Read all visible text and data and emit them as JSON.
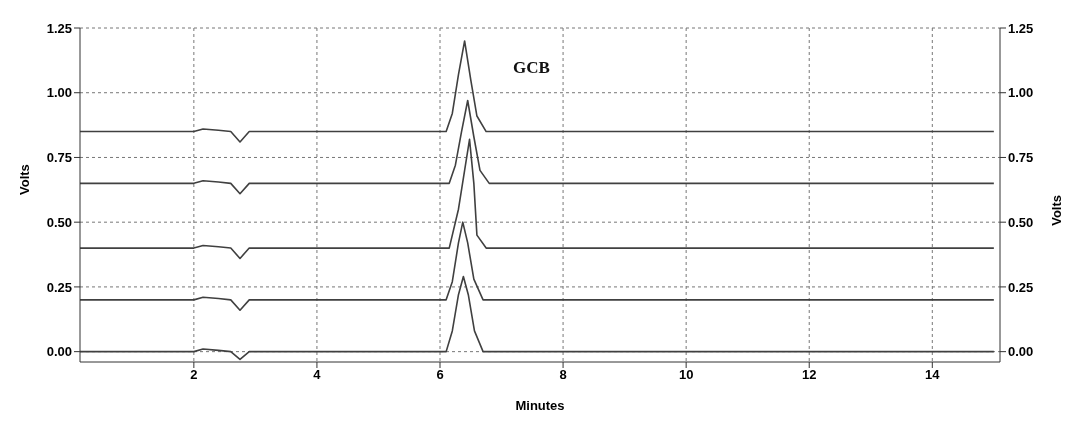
{
  "chart_data": {
    "type": "line",
    "xlabel": "Minutes",
    "ylabel": "Volts",
    "y2label": "Volts",
    "annotations": [
      "GCB"
    ],
    "xlim": [
      0.15,
      15.1
    ],
    "xticks": [
      2,
      4,
      6,
      8,
      10,
      12,
      14
    ],
    "ylim": [
      -0.04,
      1.25
    ],
    "yticks": [
      {
        "value": 0,
        "label": "0.00"
      },
      {
        "value": 0.25,
        "label": "0.25"
      },
      {
        "value": 0.5,
        "label": "0.50"
      },
      {
        "value": 0.75,
        "label": "0.75"
      },
      {
        "value": 1,
        "label": "1.00"
      },
      {
        "value": 1.25,
        "label": "1.25"
      }
    ],
    "y2lim": [
      -0.04,
      1.25
    ],
    "y2ticks": [
      {
        "value": 0,
        "label": "0.00"
      },
      {
        "value": 0.25,
        "label": "0.25"
      },
      {
        "value": 0.5,
        "label": "0.50"
      },
      {
        "value": 0.75,
        "label": "0.75"
      },
      {
        "value": 1,
        "label": "1.00"
      },
      {
        "value": 1.25,
        "label": "1.25"
      }
    ],
    "grid": true,
    "marker": "none",
    "line_style": "solid",
    "series": [
      {
        "color": "#404040",
        "x": [
          0.15,
          2.0,
          2.15,
          2.4,
          2.6,
          2.75,
          2.9,
          6.1,
          6.2,
          6.3,
          6.4,
          6.5,
          6.6,
          6.75,
          15.0
        ],
        "values": [
          0.85,
          0.85,
          0.86,
          0.855,
          0.85,
          0.81,
          0.85,
          0.85,
          0.92,
          1.07,
          1.2,
          1.05,
          0.91,
          0.85,
          0.85
        ]
      },
      {
        "color": "#404040",
        "x": [
          0.15,
          2.0,
          2.15,
          2.4,
          2.6,
          2.75,
          2.9,
          6.15,
          6.25,
          6.35,
          6.45,
          6.55,
          6.65,
          6.8,
          15.0
        ],
        "values": [
          0.65,
          0.65,
          0.66,
          0.655,
          0.65,
          0.61,
          0.65,
          0.65,
          0.72,
          0.85,
          0.97,
          0.83,
          0.7,
          0.65,
          0.65
        ]
      },
      {
        "color": "#404040",
        "x": [
          0.15,
          2.0,
          2.15,
          2.4,
          2.6,
          2.75,
          2.9,
          6.15,
          6.3,
          6.4,
          6.48,
          6.55,
          6.6,
          6.75,
          15.0
        ],
        "values": [
          0.4,
          0.4,
          0.41,
          0.405,
          0.4,
          0.36,
          0.4,
          0.4,
          0.55,
          0.7,
          0.82,
          0.65,
          0.45,
          0.4,
          0.4
        ]
      },
      {
        "color": "#404040",
        "x": [
          0.15,
          2.0,
          2.15,
          2.4,
          2.6,
          2.75,
          2.9,
          6.1,
          6.2,
          6.3,
          6.37,
          6.45,
          6.55,
          6.7,
          15.0
        ],
        "values": [
          0.2,
          0.2,
          0.21,
          0.205,
          0.2,
          0.16,
          0.2,
          0.2,
          0.27,
          0.42,
          0.5,
          0.42,
          0.28,
          0.2,
          0.2
        ]
      },
      {
        "color": "#404040",
        "x": [
          0.15,
          2.0,
          2.15,
          2.4,
          2.6,
          2.75,
          2.9,
          6.1,
          6.2,
          6.3,
          6.38,
          6.46,
          6.56,
          6.7,
          15.0
        ],
        "values": [
          0,
          0,
          0.01,
          0.005,
          0,
          -0.03,
          0,
          0,
          0.08,
          0.22,
          0.29,
          0.22,
          0.08,
          0,
          0
        ]
      }
    ]
  }
}
